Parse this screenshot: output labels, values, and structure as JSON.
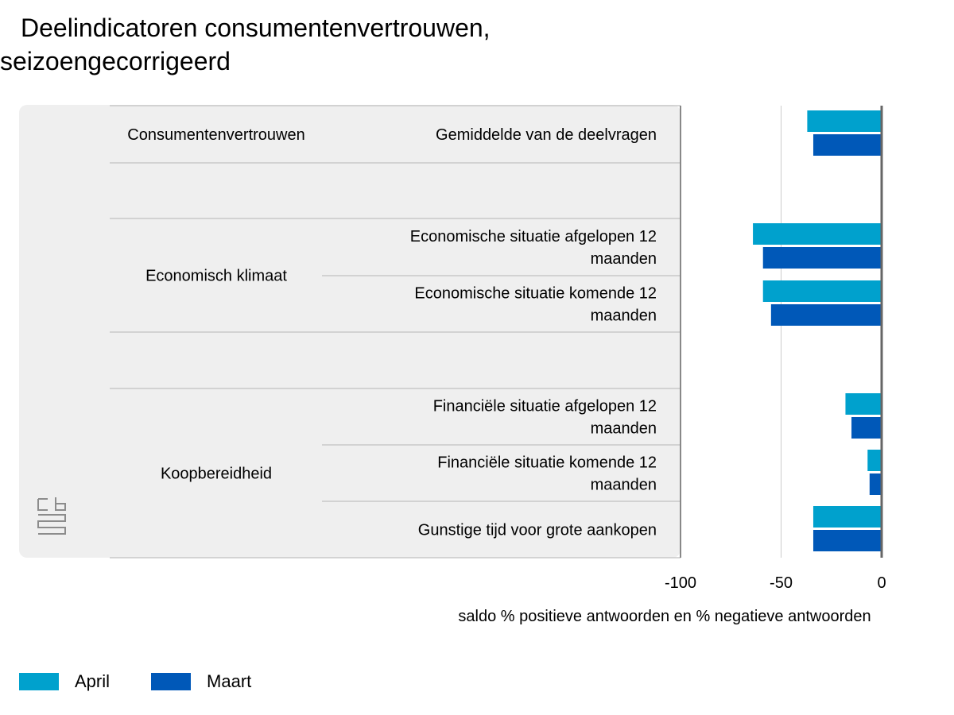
{
  "title_line1": "Deelindicatoren consumentenvertrouwen,",
  "title_line2": "seizoengecorrigeerd",
  "colors": {
    "april": "#00a1cd",
    "maart": "#0058b8",
    "panel": "#efefef",
    "grid": "#cccccc"
  },
  "chart_data": {
    "type": "bar",
    "orientation": "horizontal",
    "xlabel": "saldo % positieve antwoorden en % negatieve antwoorden",
    "xlim": [
      -100,
      0
    ],
    "xticks": [
      -100,
      -50,
      0
    ],
    "groups": [
      {
        "label": "Consumentenvertrouwen",
        "rows": [
          {
            "label": [
              "Gemiddelde van de deelvragen"
            ],
            "april": -37,
            "maart": -34
          }
        ]
      },
      {
        "label": "Economisch klimaat",
        "rows": [
          {
            "label": [
              "Economische situatie afgelopen 12",
              "maanden"
            ],
            "april": -64,
            "maart": -59
          },
          {
            "label": [
              "Economische situatie komende 12",
              "maanden"
            ],
            "april": -59,
            "maart": -55
          }
        ]
      },
      {
        "label": "Koopbereidheid",
        "rows": [
          {
            "label": [
              "Financiële situatie afgelopen 12",
              "maanden"
            ],
            "april": -18,
            "maart": -15
          },
          {
            "label": [
              "Financiële situatie komende 12",
              "maanden"
            ],
            "april": -7,
            "maart": -6
          },
          {
            "label": [
              "Gunstige tijd voor grote aankopen"
            ],
            "april": -34,
            "maart": -34
          }
        ]
      }
    ],
    "series": [
      {
        "name": "April",
        "key": "april"
      },
      {
        "name": "Maart",
        "key": "maart"
      }
    ]
  },
  "legend": {
    "april": "April",
    "maart": "Maart"
  }
}
